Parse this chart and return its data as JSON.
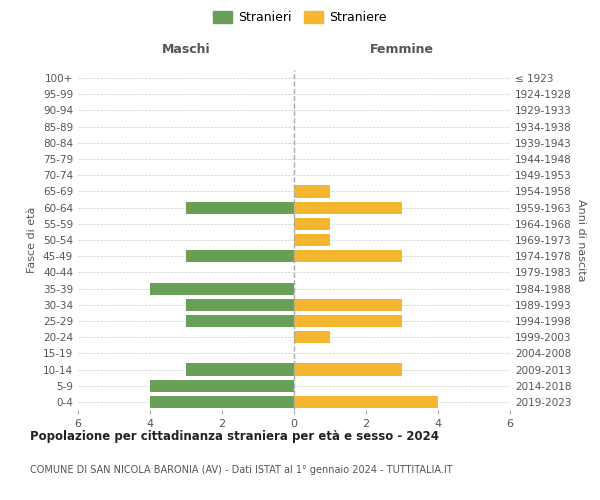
{
  "age_groups": [
    "100+",
    "95-99",
    "90-94",
    "85-89",
    "80-84",
    "75-79",
    "70-74",
    "65-69",
    "60-64",
    "55-59",
    "50-54",
    "45-49",
    "40-44",
    "35-39",
    "30-34",
    "25-29",
    "20-24",
    "15-19",
    "10-14",
    "5-9",
    "0-4"
  ],
  "birth_years": [
    "≤ 1923",
    "1924-1928",
    "1929-1933",
    "1934-1938",
    "1939-1943",
    "1944-1948",
    "1949-1953",
    "1954-1958",
    "1959-1963",
    "1964-1968",
    "1969-1973",
    "1974-1978",
    "1979-1983",
    "1984-1988",
    "1989-1993",
    "1994-1998",
    "1999-2003",
    "2004-2008",
    "2009-2013",
    "2014-2018",
    "2019-2023"
  ],
  "males": [
    0,
    0,
    0,
    0,
    0,
    0,
    0,
    0,
    3,
    0,
    0,
    3,
    0,
    4,
    3,
    3,
    0,
    0,
    3,
    4,
    4
  ],
  "females": [
    0,
    0,
    0,
    0,
    0,
    0,
    0,
    1,
    3,
    1,
    1,
    3,
    0,
    0,
    3,
    3,
    1,
    0,
    3,
    0,
    4
  ],
  "male_color": "#6a9f58",
  "female_color": "#f5b731",
  "title": "Popolazione per cittadinanza straniera per età e sesso - 2024",
  "subtitle": "COMUNE DI SAN NICOLA BARONIA (AV) - Dati ISTAT al 1° gennaio 2024 - TUTTITALIA.IT",
  "xlabel_left": "Maschi",
  "xlabel_right": "Femmine",
  "ylabel_left": "Fasce di età",
  "ylabel_right": "Anni di nascita",
  "legend_male": "Stranieri",
  "legend_female": "Straniere",
  "xlim": 6,
  "bar_height": 0.75,
  "background_color": "#ffffff",
  "grid_color": "#cccccc",
  "center_line_color": "#aaaaaa"
}
